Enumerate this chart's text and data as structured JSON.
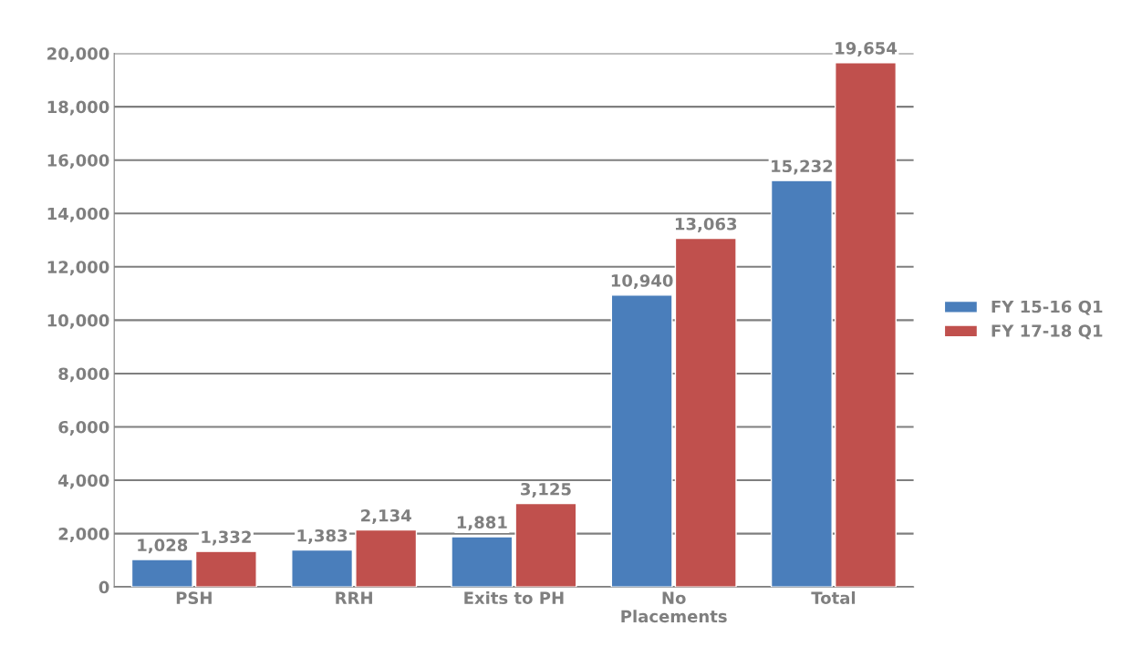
{
  "chart_data": {
    "type": "bar",
    "categories": [
      "PSH",
      "RRH",
      "Exits to PH",
      "No\nPlacements",
      "Total"
    ],
    "series": [
      {
        "name": "FY 15-16 Q1",
        "color": "#4a7ebb",
        "values": [
          1028,
          1383,
          1881,
          10940,
          15232
        ],
        "value_labels": [
          "1,028",
          "1,383",
          "1,881",
          "10,940",
          "15,232"
        ]
      },
      {
        "name": "FY 17-18 Q1",
        "color": "#c0504d",
        "values": [
          1332,
          2134,
          3125,
          13063,
          19654
        ],
        "value_labels": [
          "1,332",
          "2,134",
          "3,125",
          "13,063",
          "19,654"
        ]
      }
    ],
    "ylim": [
      0,
      20000
    ],
    "yticks": [
      0,
      {
        "value": 2000,
        "label": "2,000"
      },
      {
        "value": 4000,
        "label": "4,000"
      },
      {
        "value": 6000,
        "label": "6,000"
      },
      {
        "value": 8000,
        "label": "8,000"
      },
      {
        "value": 10000,
        "label": "10,000"
      },
      {
        "value": 12000,
        "label": "12,000"
      },
      {
        "value": 14000,
        "label": "14,000"
      },
      {
        "value": 16000,
        "label": "16,000"
      },
      {
        "value": 18000,
        "label": "18,000"
      },
      {
        "value": 20000,
        "label": "20,000"
      }
    ],
    "grid": "y",
    "legend": "right"
  }
}
